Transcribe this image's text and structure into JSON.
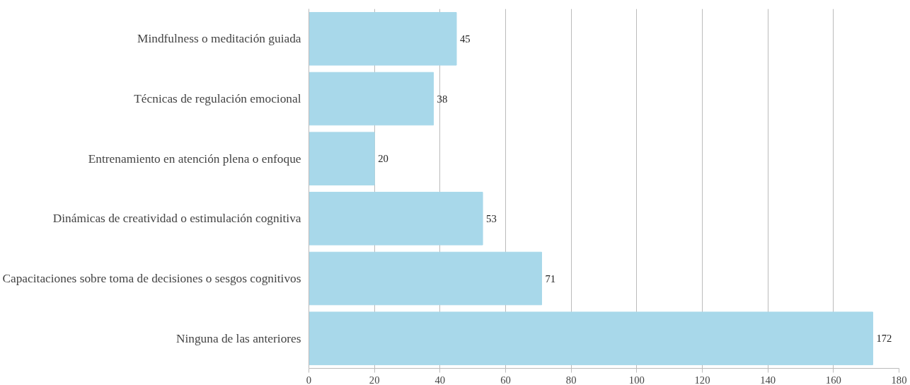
{
  "chart_data": {
    "type": "bar",
    "orientation": "horizontal",
    "categories": [
      "Mindfulness o meditación guiada",
      "Técnicas de regulación emocional",
      "Entrenamiento en atención plena o enfoque",
      "Dinámicas de creatividad o estimulación cognitiva",
      "Capacitaciones sobre toma de decisiones o sesgos cognitivos",
      "Ninguna de las anteriores"
    ],
    "values": [
      45,
      38,
      20,
      53,
      71,
      172
    ],
    "color": "#a8d8ea",
    "xlim": [
      0,
      180
    ],
    "xticks": [
      0,
      20,
      40,
      60,
      80,
      100,
      120,
      140,
      160,
      180
    ],
    "grid": "x",
    "data_labels": true
  }
}
